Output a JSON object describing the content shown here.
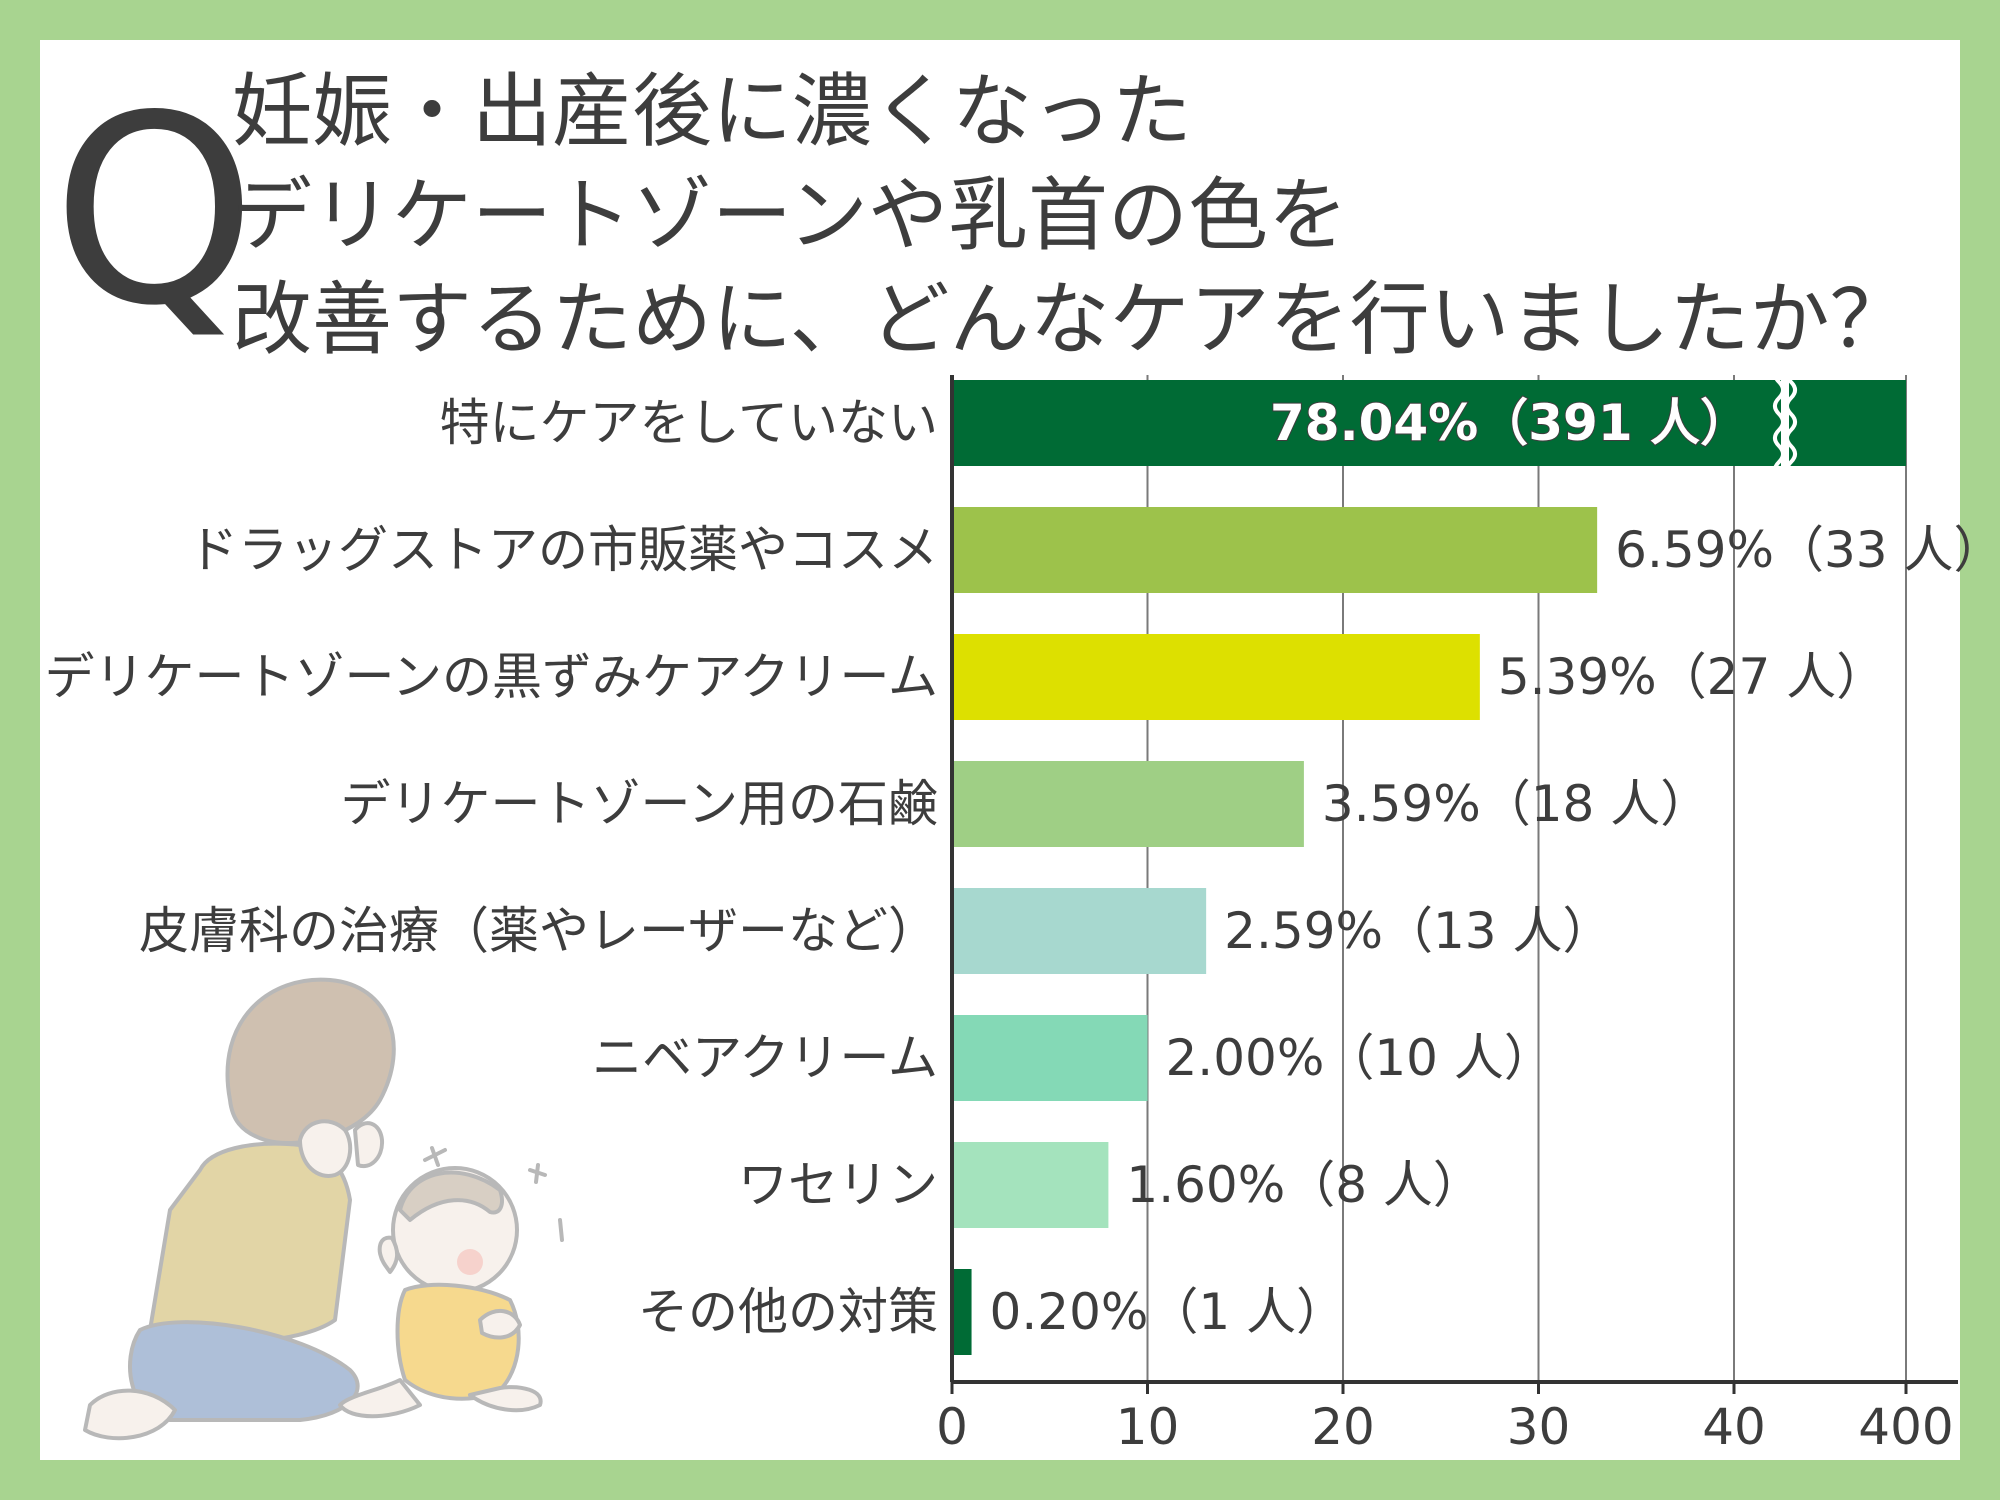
{
  "question": {
    "letter": "Q",
    "lines": [
      "妊娠・出産後に濃くなった",
      "デリケートゾーンや乳首の色を",
      "改善するために、どんなケアを行いましたか？"
    ]
  },
  "chart_data": {
    "type": "bar",
    "orientation": "horizontal",
    "axis_break": true,
    "categories": [
      "特にケアをしていない",
      "ドラッグストアの市販薬やコスメ",
      "デリケートゾーンの黒ずみケアクリーム",
      "デリケートゾーン用の石鹸",
      "皮膚科の治療（薬やレーザーなど）",
      "ニベアクリーム",
      "ワセリン",
      "その他の対策"
    ],
    "values": [
      391,
      33,
      27,
      18,
      13,
      10,
      8,
      1
    ],
    "value_labels": [
      "78.04%（391 人）",
      "6.59%（33 人）",
      "5.39%（27 人）",
      "3.59%（18 人）",
      "2.59%（13 人）",
      "2.00%（10 人）",
      "1.60%（8 人）",
      "0.20%（1 人）"
    ],
    "colors": [
      "#006b35",
      "#9dc24b",
      "#dde000",
      "#9fcf85",
      "#a7d8cf",
      "#84d9b6",
      "#a4e3bd",
      "#006b35"
    ],
    "xticks": [
      "0",
      "10",
      "20",
      "30",
      "40",
      "400"
    ],
    "xtick_values": [
      0,
      10,
      20,
      30,
      40,
      400
    ],
    "xlim_linear": [
      0,
      40
    ],
    "grid": true
  }
}
